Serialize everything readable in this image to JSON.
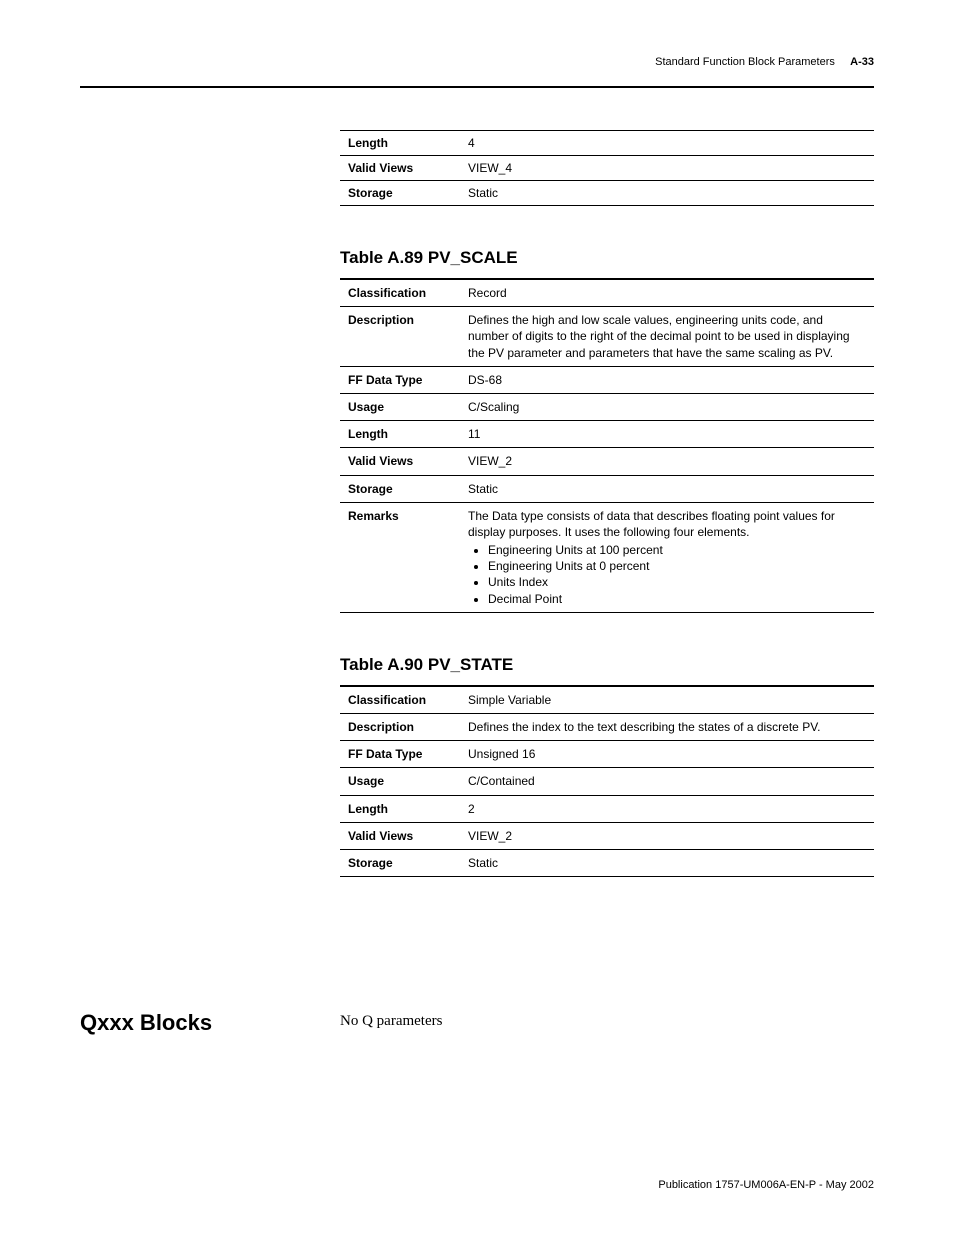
{
  "header": {
    "section_title": "Standard Function Block Parameters",
    "page_ref": "A-33"
  },
  "top_table": {
    "rows": [
      {
        "label": "Length",
        "value": "4"
      },
      {
        "label": "Valid Views",
        "value": "VIEW_4"
      },
      {
        "label": "Storage",
        "value": "Static"
      }
    ]
  },
  "tables": [
    {
      "title": "Table A.89 PV_SCALE",
      "rows": [
        {
          "label": "Classification",
          "value": "Record"
        },
        {
          "label": "Description",
          "value": "Defines the high and low scale values, engineering units code, and number of digits to the right of the decimal point to be used in displaying the PV parameter and parameters that have the same scaling as PV."
        },
        {
          "label": "FF Data Type",
          "value": "DS-68"
        },
        {
          "label": "Usage",
          "value": "C/Scaling"
        },
        {
          "label": "Length",
          "value": "11"
        },
        {
          "label": "Valid Views",
          "value": "VIEW_2"
        },
        {
          "label": "Storage",
          "value": "Static"
        },
        {
          "label": "Remarks",
          "value_intro": "The Data type consists of data that describes floating point values for display purposes. It uses the following four elements.",
          "bullets": [
            "Engineering Units at 100 percent",
            "Engineering Units at 0 percent",
            "Units Index",
            "Decimal Point"
          ]
        }
      ]
    },
    {
      "title": "Table A.90 PV_STATE",
      "rows": [
        {
          "label": "Classification",
          "value": "Simple Variable"
        },
        {
          "label": "Description",
          "value": "Defines the index to the text describing the states of a discrete PV."
        },
        {
          "label": "FF Data Type",
          "value": "Unsigned 16"
        },
        {
          "label": "Usage",
          "value": "C/Contained"
        },
        {
          "label": "Length",
          "value": "2"
        },
        {
          "label": "Valid Views",
          "value": "VIEW_2"
        },
        {
          "label": "Storage",
          "value": "Static"
        }
      ]
    }
  ],
  "section": {
    "heading": "Qxxx Blocks",
    "body": "No Q parameters"
  },
  "footer": {
    "publication": "Publication 1757-UM006A-EN-P - May 2002"
  }
}
